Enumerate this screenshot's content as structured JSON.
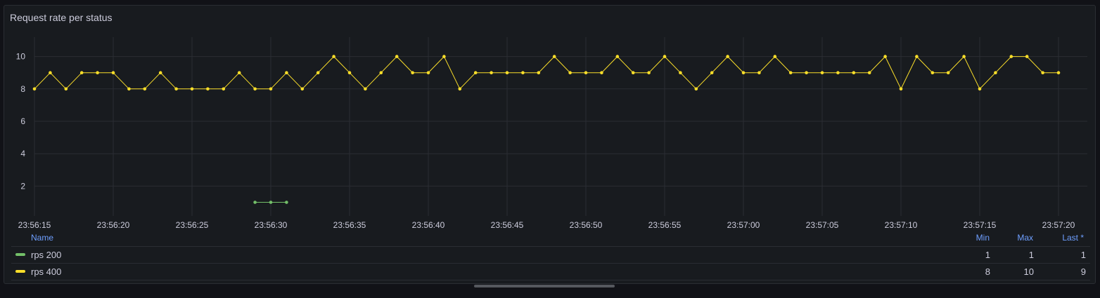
{
  "panel": {
    "title": "Request rate per status"
  },
  "legend": {
    "headers": {
      "name": "Name",
      "min": "Min",
      "max": "Max",
      "last": "Last *"
    },
    "rows": [
      {
        "name": "rps 200",
        "color": "#73bf69",
        "min": "1",
        "max": "1",
        "last": "1"
      },
      {
        "name": "rps 400",
        "color": "#fade2a",
        "min": "8",
        "max": "10",
        "last": "9"
      }
    ]
  },
  "chart_data": {
    "type": "line",
    "title": "Request rate per status",
    "xlabel": "",
    "ylabel": "",
    "ylim": [
      0,
      11
    ],
    "yticks": [
      2,
      4,
      6,
      8,
      10
    ],
    "xticks": [
      "23:56:15",
      "23:56:20",
      "23:56:25",
      "23:56:30",
      "23:56:35",
      "23:56:40",
      "23:56:45",
      "23:56:50",
      "23:56:55",
      "23:57:00",
      "23:57:05",
      "23:57:10",
      "23:57:15",
      "23:57:20"
    ],
    "x_start": "23:56:15",
    "x_step_seconds": 1,
    "grid": true,
    "series": [
      {
        "name": "rps 200",
        "color": "#73bf69",
        "x": [
          "23:56:29",
          "23:56:30",
          "23:56:31"
        ],
        "values": [
          1,
          1,
          1
        ]
      },
      {
        "name": "rps 400",
        "color": "#fade2a",
        "x_start": "23:56:15",
        "values": [
          8,
          9,
          8,
          9,
          9,
          9,
          8,
          8,
          9,
          8,
          8,
          8,
          8,
          9,
          8,
          8,
          9,
          8,
          9,
          10,
          9,
          8,
          9,
          10,
          9,
          9,
          10,
          8,
          9,
          9,
          9,
          9,
          9,
          10,
          9,
          9,
          9,
          10,
          9,
          9,
          10,
          9,
          8,
          9,
          10,
          9,
          9,
          10,
          9,
          9,
          9,
          9,
          9,
          9,
          10,
          8,
          10,
          9,
          9,
          10,
          8,
          9,
          10,
          10,
          9,
          9
        ]
      }
    ]
  }
}
